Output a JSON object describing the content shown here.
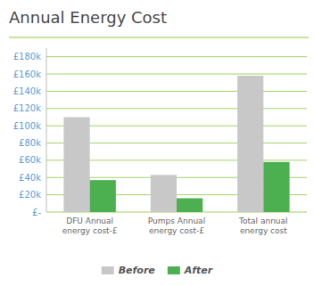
{
  "chart_data": {
    "type": "bar",
    "title": "Annual Energy Cost",
    "categories": [
      "DFU Annual\nenergy cost-£",
      "Pumps Annual\nenergy cost-£",
      "Total annual\nenergy cost"
    ],
    "series": [
      {
        "name": "Before",
        "color": "#c8c8c8",
        "values": [
          110000,
          43000,
          158000
        ]
      },
      {
        "name": "After",
        "color": "#4caf50",
        "values": [
          37000,
          16000,
          58000
        ]
      }
    ],
    "ylim": [
      0,
      190000
    ],
    "yticks": [
      {
        "value": 0,
        "label": "£-"
      },
      {
        "value": 20000,
        "label": "£20k"
      },
      {
        "value": 40000,
        "label": "£40k"
      },
      {
        "value": 60000,
        "label": "£60k"
      },
      {
        "value": 80000,
        "label": "£80k"
      },
      {
        "value": 100000,
        "label": "£100k"
      },
      {
        "value": 120000,
        "label": "£120k"
      },
      {
        "value": 140000,
        "label": "£140k"
      },
      {
        "value": 160000,
        "label": "£160k"
      },
      {
        "value": 180000,
        "label": "£180k"
      }
    ],
    "grid": true,
    "legend": "bottom"
  }
}
